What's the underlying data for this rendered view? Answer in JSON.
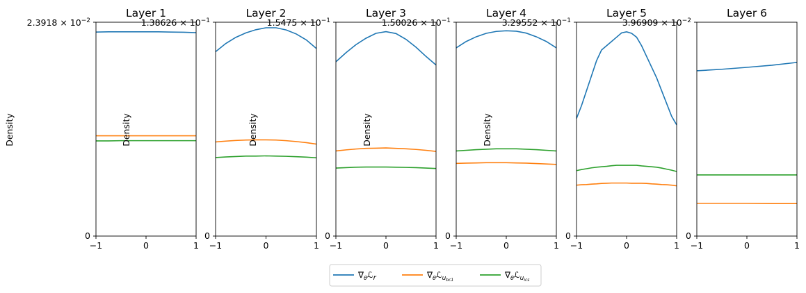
{
  "figure": {
    "ylabel": "Density",
    "legend": {
      "placement": "bottom-center",
      "entries": [
        {
          "label": "∇θℒr",
          "color": "#1f77b4"
        },
        {
          "label": "∇θℒu_bc1",
          "color": "#ff7f0e"
        },
        {
          "label": "∇θℒu_ics",
          "color": "#2ca02c"
        }
      ]
    }
  },
  "chart_data": [
    {
      "type": "line",
      "title": "Layer 1",
      "xlim": [
        -1,
        1
      ],
      "ylim": [
        0,
        1
      ],
      "xticks": [
        "−1",
        "0",
        "1"
      ],
      "yticks": [
        "0"
      ],
      "ymax_label": "2.3918 × 10^−2",
      "ylabel": "Density",
      "x": [
        -1,
        -0.75,
        -0.5,
        -0.25,
        0,
        0.25,
        0.5,
        0.75,
        1
      ],
      "series": [
        {
          "name": "∇θℒr",
          "values": [
            0.954,
            0.955,
            0.955,
            0.955,
            0.955,
            0.955,
            0.954,
            0.953,
            0.951
          ]
        },
        {
          "name": "∇θℒu_bc1",
          "values": [
            0.469,
            0.469,
            0.469,
            0.469,
            0.469,
            0.469,
            0.469,
            0.469,
            0.469
          ]
        },
        {
          "name": "∇θℒu_ics",
          "values": [
            0.445,
            0.445,
            0.446,
            0.446,
            0.446,
            0.446,
            0.446,
            0.446,
            0.446
          ]
        }
      ]
    },
    {
      "type": "line",
      "title": "Layer 2",
      "xlim": [
        -1,
        1
      ],
      "ylim": [
        0,
        1
      ],
      "xticks": [
        "−1",
        "0",
        "1"
      ],
      "yticks": [
        "0"
      ],
      "ymax_label": "1.38626 × 10^−1",
      "ylabel": "Density",
      "x": [
        -1,
        -0.8,
        -0.6,
        -0.4,
        -0.2,
        0,
        0.2,
        0.4,
        0.6,
        0.8,
        1
      ],
      "series": [
        {
          "name": "∇θℒr",
          "values": [
            0.862,
            0.9,
            0.929,
            0.95,
            0.965,
            0.974,
            0.974,
            0.964,
            0.945,
            0.917,
            0.877
          ]
        },
        {
          "name": "∇θℒu_bc1",
          "values": [
            0.44,
            0.444,
            0.447,
            0.449,
            0.45,
            0.45,
            0.449,
            0.446,
            0.442,
            0.437,
            0.43
          ]
        },
        {
          "name": "∇θℒu_ics",
          "values": [
            0.367,
            0.37,
            0.372,
            0.374,
            0.374,
            0.375,
            0.374,
            0.373,
            0.371,
            0.369,
            0.366
          ]
        }
      ]
    },
    {
      "type": "line",
      "title": "Layer 3",
      "xlim": [
        -1,
        1
      ],
      "ylim": [
        0,
        1
      ],
      "xticks": [
        "−1",
        "0",
        "1"
      ],
      "yticks": [
        "0"
      ],
      "ymax_label": "1.5475 × 10^−1",
      "ylabel": "Density",
      "x": [
        -1,
        -0.8,
        -0.6,
        -0.4,
        -0.2,
        0,
        0.2,
        0.4,
        0.6,
        0.8,
        1
      ],
      "series": [
        {
          "name": "∇θℒr",
          "values": [
            0.815,
            0.857,
            0.895,
            0.925,
            0.948,
            0.956,
            0.947,
            0.92,
            0.883,
            0.84,
            0.8
          ]
        },
        {
          "name": "∇θℒu_bc1",
          "values": [
            0.398,
            0.403,
            0.407,
            0.41,
            0.411,
            0.412,
            0.41,
            0.408,
            0.405,
            0.401,
            0.396
          ]
        },
        {
          "name": "∇θℒu_ics",
          "values": [
            0.318,
            0.32,
            0.322,
            0.323,
            0.323,
            0.323,
            0.322,
            0.321,
            0.32,
            0.318,
            0.316
          ]
        }
      ]
    },
    {
      "type": "line",
      "title": "Layer 4",
      "xlim": [
        -1,
        1
      ],
      "ylim": [
        0,
        1
      ],
      "xticks": [
        "−1",
        "0",
        "1"
      ],
      "yticks": [
        "0"
      ],
      "ymax_label": "1.50026 × 10^−1",
      "ylabel": "Density",
      "x": [
        -1,
        -0.8,
        -0.6,
        -0.4,
        -0.2,
        0,
        0.2,
        0.4,
        0.6,
        0.8,
        1
      ],
      "series": [
        {
          "name": "∇θℒr",
          "values": [
            0.88,
            0.91,
            0.932,
            0.948,
            0.957,
            0.96,
            0.958,
            0.949,
            0.932,
            0.91,
            0.88
          ]
        },
        {
          "name": "∇θℒu_bc1",
          "values": [
            0.34,
            0.341,
            0.342,
            0.343,
            0.343,
            0.343,
            0.342,
            0.341,
            0.339,
            0.337,
            0.335
          ]
        },
        {
          "name": "∇θℒu_ics",
          "values": [
            0.398,
            0.401,
            0.404,
            0.406,
            0.408,
            0.408,
            0.408,
            0.406,
            0.404,
            0.401,
            0.398
          ]
        }
      ]
    },
    {
      "type": "line",
      "title": "Layer 5",
      "xlim": [
        -1,
        1
      ],
      "ylim": [
        0,
        1
      ],
      "xticks": [
        "−1",
        "0",
        "1"
      ],
      "yticks": [
        "0"
      ],
      "ymax_label": "3.29552 × 10^−1",
      "ylabel": "Density",
      "x": [
        -1,
        -0.9,
        -0.8,
        -0.7,
        -0.6,
        -0.5,
        -0.4,
        -0.3,
        -0.2,
        -0.1,
        0,
        0.1,
        0.2,
        0.3,
        0.4,
        0.5,
        0.6,
        0.7,
        0.8,
        0.9,
        1
      ],
      "series": [
        {
          "name": "∇θℒr",
          "values": [
            0.55,
            0.61,
            0.68,
            0.75,
            0.82,
            0.87,
            0.89,
            0.91,
            0.93,
            0.95,
            0.955,
            0.948,
            0.93,
            0.89,
            0.84,
            0.79,
            0.74,
            0.68,
            0.62,
            0.56,
            0.52
          ]
        },
        {
          "name": "∇θℒu_bc1",
          "values": [
            0.238,
            0.24,
            0.241,
            0.243,
            0.244,
            0.246,
            0.247,
            0.248,
            0.248,
            0.248,
            0.248,
            0.247,
            0.247,
            0.247,
            0.246,
            0.244,
            0.243,
            0.241,
            0.24,
            0.238,
            0.235
          ]
        },
        {
          "name": "∇θℒu_ics",
          "values": [
            0.306,
            0.311,
            0.315,
            0.319,
            0.322,
            0.324,
            0.326,
            0.329,
            0.331,
            0.331,
            0.331,
            0.331,
            0.331,
            0.328,
            0.326,
            0.324,
            0.322,
            0.318,
            0.313,
            0.308,
            0.302
          ]
        }
      ]
    },
    {
      "type": "line",
      "title": "Layer 6",
      "xlim": [
        -1,
        1
      ],
      "ylim": [
        0,
        1
      ],
      "xticks": [
        "−1",
        "0",
        "1"
      ],
      "yticks": [
        "0"
      ],
      "ymax_label": "3.96909 × 10^−2",
      "ylabel": "",
      "x": [
        -1,
        -0.5,
        0,
        0.5,
        1
      ],
      "series": [
        {
          "name": "∇θℒr",
          "values": [
            0.773,
            0.78,
            0.789,
            0.799,
            0.812
          ]
        },
        {
          "name": "∇θℒu_bc1",
          "values": [
            0.153,
            0.153,
            0.153,
            0.152,
            0.152
          ]
        },
        {
          "name": "∇θℒu_ics",
          "values": [
            0.286,
            0.286,
            0.286,
            0.286,
            0.286
          ]
        }
      ]
    }
  ]
}
